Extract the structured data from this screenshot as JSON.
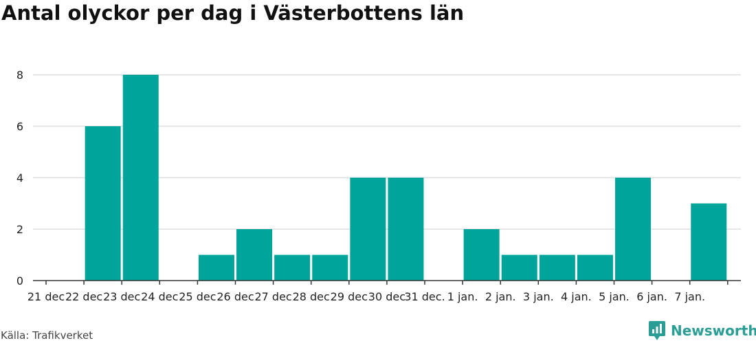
{
  "header": {
    "title": "Antal olyckor per dag i Västerbottens län"
  },
  "footer": {
    "source": "Källa: Trafikverket",
    "brand": "Newsworthy"
  },
  "colors": {
    "bar": "#00a49a",
    "brand": "#2a9d95",
    "grid": "#dddddd",
    "axis": "#333333"
  },
  "chart_data": {
    "type": "bar",
    "title": "Antal olyckor per dag i Västerbottens län",
    "xlabel": "",
    "ylabel": "",
    "categories": [
      "21 dec",
      "22 dec",
      "23 dec",
      "24 dec",
      "25 dec",
      "26 dec",
      "27 dec",
      "28 dec",
      "29 dec",
      "30 dec",
      "31 dec.",
      "1 jan.",
      "2 jan.",
      "3 jan.",
      "4 jan.",
      "5 jan.",
      "6 jan.",
      "7 jan."
    ],
    "values": [
      0,
      6,
      8,
      0,
      1,
      2,
      1,
      1,
      4,
      4,
      0,
      2,
      1,
      1,
      1,
      4,
      0,
      3
    ],
    "ylim": [
      0,
      8
    ],
    "yticks": [
      0,
      2,
      4,
      6,
      8
    ],
    "grid": true,
    "legend": "none"
  }
}
